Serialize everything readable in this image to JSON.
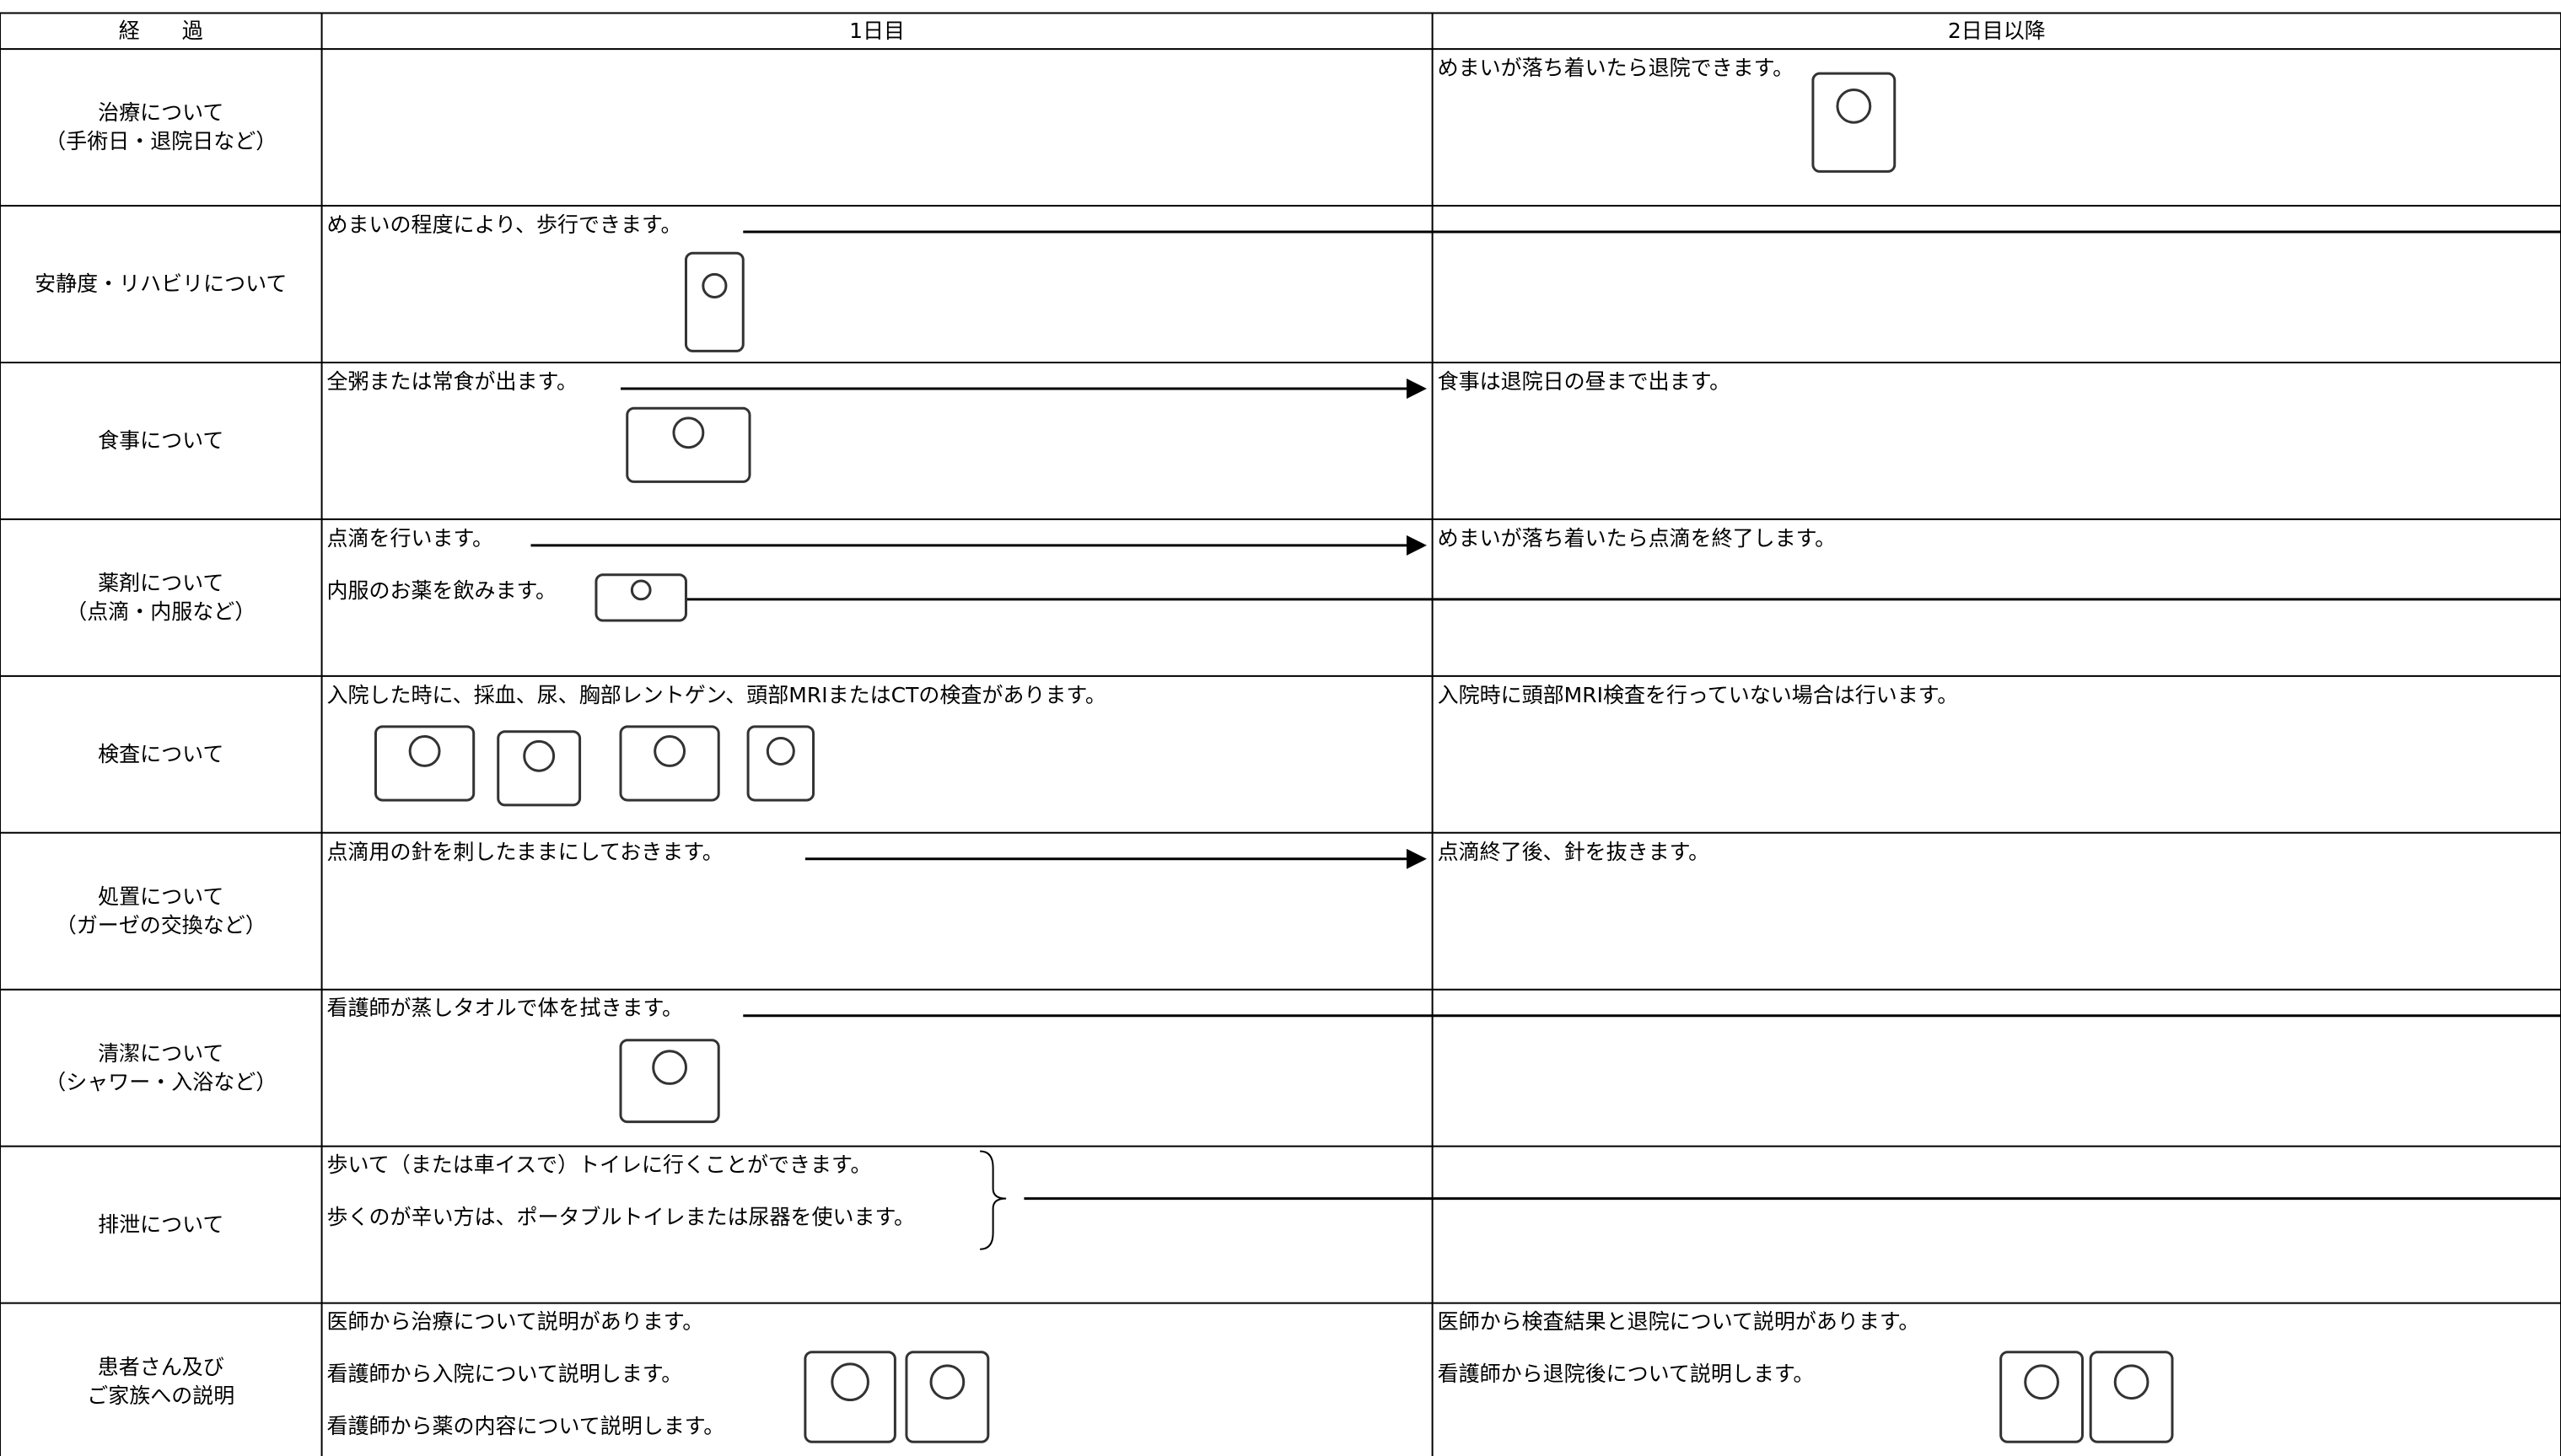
{
  "header": {
    "label": "経　　過",
    "day1": "1日目",
    "day2": "2日目以降"
  },
  "rows": [
    {
      "label": [
        "治療について",
        "（手術日・退院日など）"
      ],
      "day1": [],
      "day2": [
        "めまいが落ち着いたら退院できます。"
      ]
    },
    {
      "label": [
        "安静度・リハビリについて"
      ],
      "day1": [
        "めまいの程度により、歩行できます。"
      ],
      "day2": []
    },
    {
      "label": [
        "食事について"
      ],
      "day1": [
        "全粥または常食が出ます。"
      ],
      "day2": [
        "食事は退院日の昼まで出ます。"
      ]
    },
    {
      "label": [
        "薬剤について",
        "（点滴・内服など）"
      ],
      "day1": [
        "点滴を行います。",
        "内服のお薬を飲みます。"
      ],
      "day2": [
        "めまいが落ち着いたら点滴を終了します。"
      ]
    },
    {
      "label": [
        "検査について"
      ],
      "day1": [
        "入院した時に、採血、尿、胸部レントゲン、頭部MRIまたはCTの検査があります。"
      ],
      "day2": [
        "入院時に頭部MRI検査を行っていない場合は行います。"
      ]
    },
    {
      "label": [
        "処置について",
        "（ガーゼの交換など）"
      ],
      "day1": [
        "点滴用の針を刺したままにしておきます。"
      ],
      "day2": [
        "点滴終了後、針を抜きます。"
      ]
    },
    {
      "label": [
        "清潔について",
        "（シャワー・入浴など）"
      ],
      "day1": [
        "看護師が蒸しタオルで体を拭きます。"
      ],
      "day2": []
    },
    {
      "label": [
        "排泄について"
      ],
      "day1": [
        "歩いて（または車イスで）トイレに行くことができます。",
        "歩くのが辛い方は、ポータブルトイレまたは尿器を使います。"
      ],
      "day2": []
    },
    {
      "label": [
        "患者さん及び",
        "ご家族への説明"
      ],
      "day1": [
        "医師から治療について説明があります。",
        "看護師から入院について説明します。",
        "看護師から薬の内容について説明します。"
      ],
      "day2": [
        "医師から検査結果と退院について説明があります。",
        "看護師から退院後について説明します。"
      ]
    }
  ]
}
